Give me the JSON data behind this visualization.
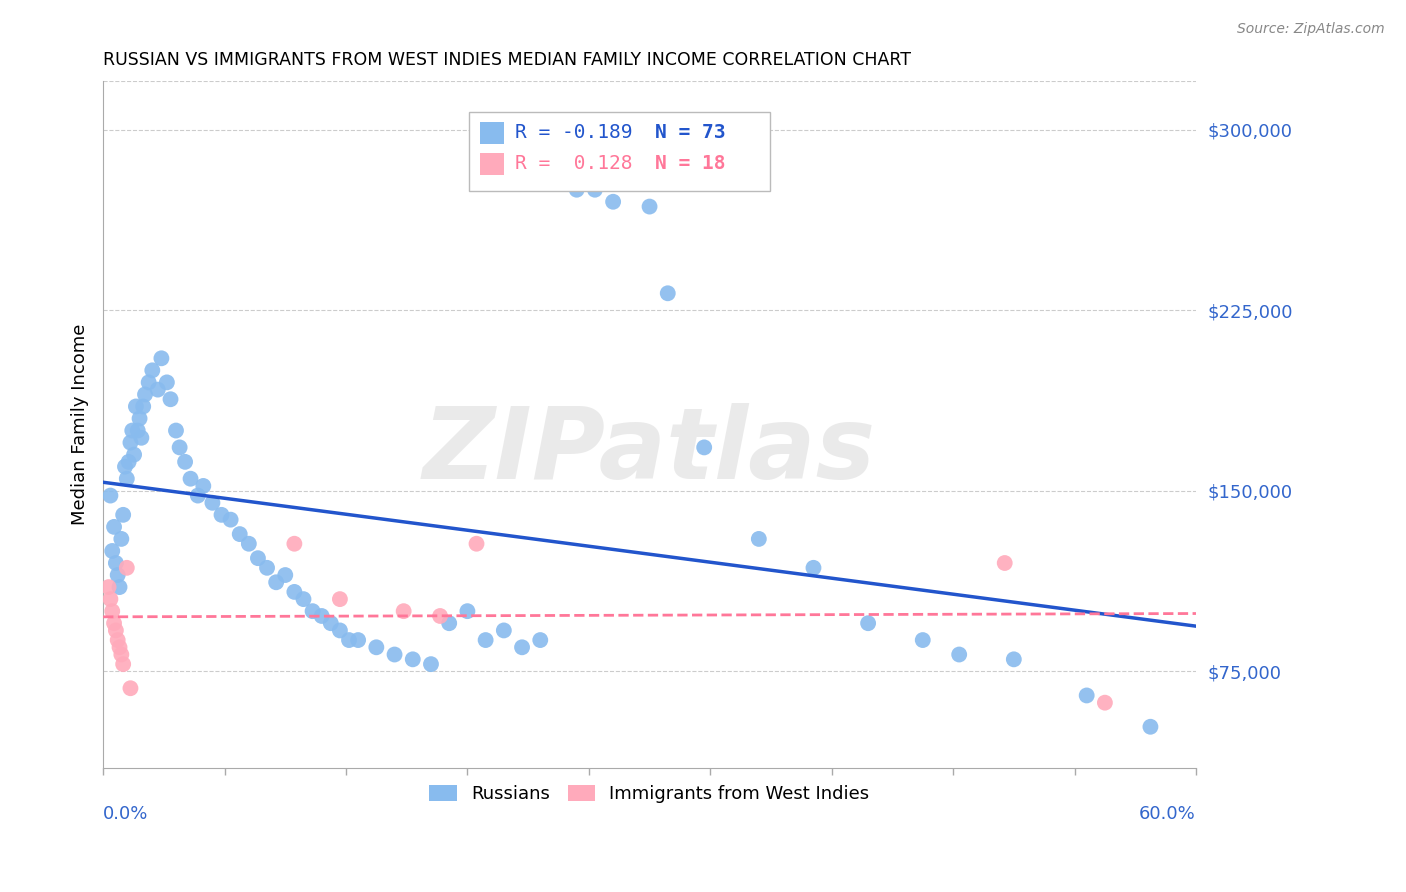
{
  "title": "RUSSIAN VS IMMIGRANTS FROM WEST INDIES MEDIAN FAMILY INCOME CORRELATION CHART",
  "source": "Source: ZipAtlas.com",
  "ylabel": "Median Family Income",
  "yticks": [
    75000,
    150000,
    225000,
    300000
  ],
  "ytick_labels": [
    "$75,000",
    "$150,000",
    "$225,000",
    "$300,000"
  ],
  "xlim": [
    0.0,
    0.6
  ],
  "ylim": [
    35000,
    320000
  ],
  "watermark": "ZIPatlas",
  "legend_r1": "R = -0.189",
  "legend_n1": "N = 73",
  "legend_r2": "R =  0.128",
  "legend_n2": "N = 18",
  "blue_color": "#88BBEE",
  "pink_color": "#FFAABB",
  "blue_line_color": "#2255CC",
  "pink_line_color": "#FF7799",
  "russians_x": [
    0.004,
    0.005,
    0.006,
    0.007,
    0.008,
    0.009,
    0.01,
    0.011,
    0.012,
    0.013,
    0.014,
    0.015,
    0.016,
    0.017,
    0.018,
    0.019,
    0.02,
    0.021,
    0.022,
    0.023,
    0.025,
    0.027,
    0.03,
    0.032,
    0.035,
    0.037,
    0.04,
    0.042,
    0.045,
    0.048,
    0.052,
    0.055,
    0.06,
    0.065,
    0.07,
    0.075,
    0.08,
    0.085,
    0.09,
    0.095,
    0.1,
    0.105,
    0.11,
    0.115,
    0.12,
    0.125,
    0.13,
    0.135,
    0.14,
    0.15,
    0.16,
    0.17,
    0.18,
    0.19,
    0.2,
    0.21,
    0.22,
    0.23,
    0.24,
    0.26,
    0.27,
    0.28,
    0.3,
    0.31,
    0.33,
    0.36,
    0.39,
    0.42,
    0.45,
    0.47,
    0.5,
    0.54,
    0.575
  ],
  "russians_y": [
    148000,
    125000,
    135000,
    120000,
    115000,
    110000,
    130000,
    140000,
    160000,
    155000,
    162000,
    170000,
    175000,
    165000,
    185000,
    175000,
    180000,
    172000,
    185000,
    190000,
    195000,
    200000,
    192000,
    205000,
    195000,
    188000,
    175000,
    168000,
    162000,
    155000,
    148000,
    152000,
    145000,
    140000,
    138000,
    132000,
    128000,
    122000,
    118000,
    112000,
    115000,
    108000,
    105000,
    100000,
    98000,
    95000,
    92000,
    88000,
    88000,
    85000,
    82000,
    80000,
    78000,
    95000,
    100000,
    88000,
    92000,
    85000,
    88000,
    275000,
    275000,
    270000,
    268000,
    232000,
    168000,
    130000,
    118000,
    95000,
    88000,
    82000,
    80000,
    65000,
    52000
  ],
  "westindies_x": [
    0.003,
    0.004,
    0.005,
    0.006,
    0.007,
    0.008,
    0.009,
    0.01,
    0.011,
    0.013,
    0.015,
    0.105,
    0.13,
    0.165,
    0.185,
    0.205,
    0.495,
    0.55
  ],
  "westindies_y": [
    110000,
    105000,
    100000,
    95000,
    92000,
    88000,
    85000,
    82000,
    78000,
    118000,
    68000,
    128000,
    105000,
    100000,
    98000,
    128000,
    120000,
    62000
  ]
}
